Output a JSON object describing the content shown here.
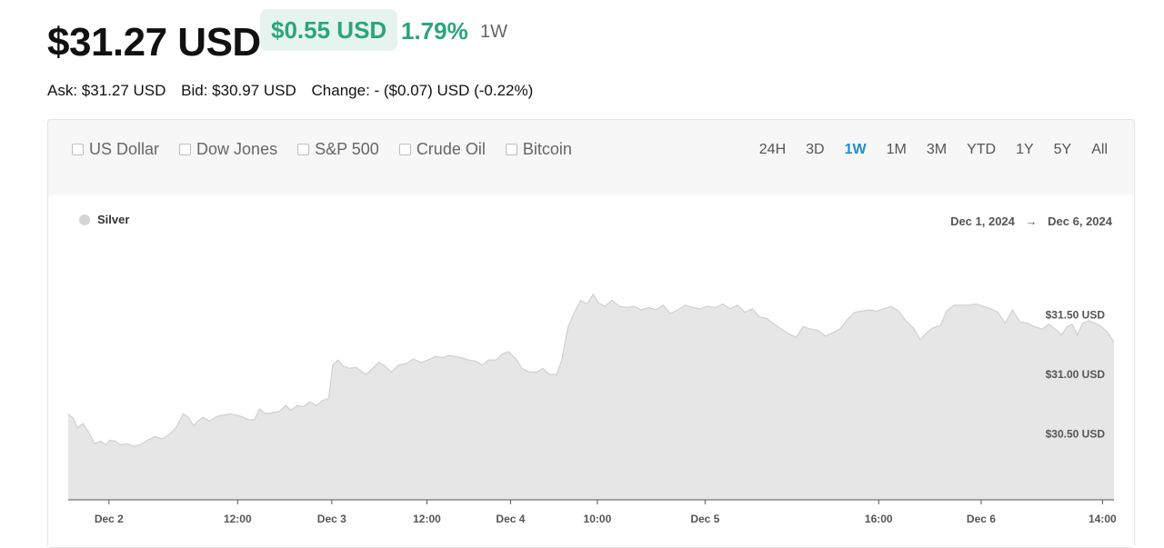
{
  "header": {
    "price": "$31.27 USD",
    "change_value": "$0.55 USD",
    "change_percent": "1.79%",
    "period": "1W",
    "ask": "Ask: $31.27 USD",
    "bid": "Bid: $30.97 USD",
    "change": "Change: - ($0.07) USD (-0.22%)"
  },
  "compare": [
    "US Dollar",
    "Dow Jones",
    "S&P 500",
    "Crude Oil",
    "Bitcoin"
  ],
  "ranges": [
    "24H",
    "3D",
    "1W",
    "1M",
    "3M",
    "YTD",
    "1Y",
    "5Y",
    "All"
  ],
  "active_range": "1W",
  "colors": {
    "accent_green": "#2aa57a",
    "active_blue": "#1e8fce",
    "area_fill": "#e6e6e6",
    "area_line": "#d0d0d0"
  },
  "chart_data": {
    "type": "area",
    "legend": [
      {
        "name": "Silver",
        "color": "#d4d4d4"
      }
    ],
    "date_from": "Dec 1, 2024",
    "date_arrow": "→",
    "date_to": "Dec 6, 2024",
    "yticks": [
      {
        "value": 31.5,
        "label": "$31.50 USD"
      },
      {
        "value": 31.0,
        "label": "$31.00 USD"
      },
      {
        "value": 30.5,
        "label": "$30.50 USD"
      }
    ],
    "ylim": [
      29.95,
      32.05
    ],
    "xlim": [
      0,
      1
    ],
    "xticks": [
      {
        "x": 0.039,
        "label": "Dec 2"
      },
      {
        "x": 0.162,
        "label": "12:00"
      },
      {
        "x": 0.252,
        "label": "Dec 3"
      },
      {
        "x": 0.343,
        "label": "12:00"
      },
      {
        "x": 0.423,
        "label": "Dec 4"
      },
      {
        "x": 0.506,
        "label": "10:00"
      },
      {
        "x": 0.609,
        "label": "Dec 5"
      },
      {
        "x": 0.775,
        "label": "16:00"
      },
      {
        "x": 0.873,
        "label": "Dec 6"
      },
      {
        "x": 0.989,
        "label": "14:00"
      }
    ],
    "series": [
      {
        "name": "Silver",
        "points": [
          [
            0.0,
            30.67
          ],
          [
            0.005,
            30.63
          ],
          [
            0.009,
            30.55
          ],
          [
            0.014,
            30.59
          ],
          [
            0.02,
            30.51
          ],
          [
            0.025,
            30.42
          ],
          [
            0.031,
            30.44
          ],
          [
            0.036,
            30.41
          ],
          [
            0.04,
            30.45
          ],
          [
            0.045,
            30.44
          ],
          [
            0.05,
            30.41
          ],
          [
            0.056,
            30.42
          ],
          [
            0.063,
            30.4
          ],
          [
            0.069,
            30.41
          ],
          [
            0.076,
            30.45
          ],
          [
            0.083,
            30.48
          ],
          [
            0.09,
            30.46
          ],
          [
            0.097,
            30.5
          ],
          [
            0.103,
            30.55
          ],
          [
            0.11,
            30.67
          ],
          [
            0.115,
            30.64
          ],
          [
            0.12,
            30.57
          ],
          [
            0.124,
            30.61
          ],
          [
            0.129,
            30.64
          ],
          [
            0.135,
            30.61
          ],
          [
            0.143,
            30.65
          ],
          [
            0.155,
            30.67
          ],
          [
            0.165,
            30.65
          ],
          [
            0.172,
            30.62
          ],
          [
            0.178,
            30.62
          ],
          [
            0.183,
            30.71
          ],
          [
            0.189,
            30.67
          ],
          [
            0.195,
            30.68
          ],
          [
            0.202,
            30.69
          ],
          [
            0.208,
            30.74
          ],
          [
            0.213,
            30.7
          ],
          [
            0.219,
            30.74
          ],
          [
            0.225,
            30.73
          ],
          [
            0.231,
            30.77
          ],
          [
            0.237,
            30.74
          ],
          [
            0.243,
            30.78
          ],
          [
            0.249,
            30.8
          ],
          [
            0.253,
            31.08
          ],
          [
            0.258,
            31.12
          ],
          [
            0.263,
            31.07
          ],
          [
            0.269,
            31.05
          ],
          [
            0.275,
            31.06
          ],
          [
            0.28,
            31.03
          ],
          [
            0.285,
            31.0
          ],
          [
            0.291,
            31.05
          ],
          [
            0.297,
            31.1
          ],
          [
            0.303,
            31.07
          ],
          [
            0.309,
            31.02
          ],
          [
            0.316,
            31.08
          ],
          [
            0.323,
            31.09
          ],
          [
            0.33,
            31.13
          ],
          [
            0.337,
            31.1
          ],
          [
            0.344,
            31.12
          ],
          [
            0.351,
            31.15
          ],
          [
            0.358,
            31.14
          ],
          [
            0.364,
            31.16
          ],
          [
            0.37,
            31.15
          ],
          [
            0.376,
            31.14
          ],
          [
            0.383,
            31.12
          ],
          [
            0.39,
            31.11
          ],
          [
            0.396,
            31.08
          ],
          [
            0.402,
            31.12
          ],
          [
            0.409,
            31.12
          ],
          [
            0.415,
            31.17
          ],
          [
            0.421,
            31.19
          ],
          [
            0.428,
            31.13
          ],
          [
            0.434,
            31.05
          ],
          [
            0.441,
            31.02
          ],
          [
            0.448,
            31.02
          ],
          [
            0.454,
            31.05
          ],
          [
            0.46,
            31.0
          ],
          [
            0.467,
            31.0
          ],
          [
            0.472,
            31.12
          ],
          [
            0.478,
            31.4
          ],
          [
            0.484,
            31.52
          ],
          [
            0.49,
            31.62
          ],
          [
            0.496,
            31.59
          ],
          [
            0.502,
            31.67
          ],
          [
            0.507,
            31.6
          ],
          [
            0.513,
            31.57
          ],
          [
            0.52,
            31.62
          ],
          [
            0.527,
            31.57
          ],
          [
            0.534,
            31.56
          ],
          [
            0.541,
            31.57
          ],
          [
            0.548,
            31.54
          ],
          [
            0.555,
            31.56
          ],
          [
            0.562,
            31.54
          ],
          [
            0.569,
            31.58
          ],
          [
            0.576,
            31.51
          ],
          [
            0.583,
            31.54
          ],
          [
            0.59,
            31.58
          ],
          [
            0.597,
            31.56
          ],
          [
            0.604,
            31.55
          ],
          [
            0.611,
            31.57
          ],
          [
            0.619,
            31.56
          ],
          [
            0.626,
            31.59
          ],
          [
            0.633,
            31.55
          ],
          [
            0.64,
            31.58
          ],
          [
            0.647,
            31.52
          ],
          [
            0.654,
            31.55
          ],
          [
            0.661,
            31.48
          ],
          [
            0.668,
            31.47
          ],
          [
            0.675,
            31.42
          ],
          [
            0.682,
            31.38
          ],
          [
            0.689,
            31.34
          ],
          [
            0.696,
            31.31
          ],
          [
            0.703,
            31.4
          ],
          [
            0.71,
            31.38
          ],
          [
            0.717,
            31.37
          ],
          [
            0.724,
            31.32
          ],
          [
            0.731,
            31.35
          ],
          [
            0.738,
            31.38
          ],
          [
            0.745,
            31.46
          ],
          [
            0.752,
            31.52
          ],
          [
            0.759,
            31.53
          ],
          [
            0.766,
            31.54
          ],
          [
            0.773,
            31.53
          ],
          [
            0.78,
            31.55
          ],
          [
            0.787,
            31.57
          ],
          [
            0.794,
            31.53
          ],
          [
            0.801,
            31.45
          ],
          [
            0.808,
            31.39
          ],
          [
            0.815,
            31.29
          ],
          [
            0.821,
            31.35
          ],
          [
            0.827,
            31.39
          ],
          [
            0.834,
            31.41
          ],
          [
            0.84,
            31.53
          ],
          [
            0.847,
            31.58
          ],
          [
            0.854,
            31.58
          ],
          [
            0.861,
            31.58
          ],
          [
            0.868,
            31.59
          ],
          [
            0.875,
            31.57
          ],
          [
            0.882,
            31.55
          ],
          [
            0.889,
            31.52
          ],
          [
            0.896,
            31.43
          ],
          [
            0.903,
            31.54
          ],
          [
            0.91,
            31.44
          ],
          [
            0.917,
            31.43
          ],
          [
            0.924,
            31.4
          ],
          [
            0.931,
            31.38
          ],
          [
            0.938,
            31.42
          ],
          [
            0.945,
            31.37
          ],
          [
            0.95,
            31.33
          ],
          [
            0.955,
            31.4
          ],
          [
            0.96,
            31.42
          ],
          [
            0.965,
            31.33
          ],
          [
            0.97,
            31.43
          ],
          [
            0.976,
            31.45
          ],
          [
            0.982,
            31.43
          ],
          [
            0.988,
            31.4
          ],
          [
            0.994,
            31.35
          ],
          [
            1.0,
            31.27
          ]
        ]
      }
    ]
  }
}
